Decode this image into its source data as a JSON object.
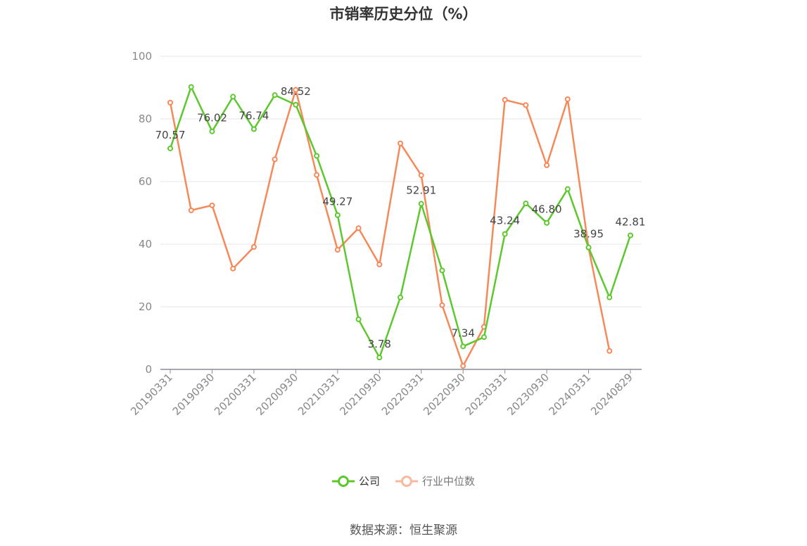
{
  "chart_data": {
    "type": "line",
    "title": "市销率历史分位（%）",
    "xlabel": "",
    "ylabel": "",
    "ylim": [
      0,
      100
    ],
    "yticks": [
      0,
      20,
      40,
      60,
      80,
      100
    ],
    "x_tick_labels": [
      "20190331",
      "20190930",
      "20200331",
      "20200930",
      "20210331",
      "20210930",
      "20220331",
      "20220930",
      "20230331",
      "20230930",
      "20240331",
      "20240829"
    ],
    "x_tick_positions": [
      0,
      2,
      4,
      6,
      8,
      10,
      12,
      14,
      16,
      18,
      20,
      22
    ],
    "grid": "horizontal",
    "legend_position": "bottom-center",
    "series": [
      {
        "name": "公司",
        "color": "#5dc82e",
        "values": [
          70.57,
          90.2,
          76.02,
          87.1,
          76.74,
          87.6,
          84.52,
          68.2,
          49.27,
          16.0,
          3.78,
          23.0,
          52.91,
          31.6,
          7.34,
          10.3,
          43.24,
          53.0,
          46.8,
          57.6,
          38.95,
          23.0,
          42.81
        ]
      },
      {
        "name": "行业中位数",
        "color": "#f5895a",
        "values": [
          85.2,
          50.8,
          52.4,
          32.2,
          39.1,
          67.1,
          89.3,
          62.1,
          38.2,
          45.1,
          33.5,
          72.2,
          62.0,
          20.5,
          1.1,
          13.6,
          86.1,
          84.4,
          65.2,
          86.3,
          38.9,
          5.9,
          null
        ]
      }
    ],
    "data_labels": [
      {
        "series": 0,
        "index": 0,
        "text": "70.57"
      },
      {
        "series": 0,
        "index": 2,
        "text": "76.02"
      },
      {
        "series": 0,
        "index": 4,
        "text": "76.74"
      },
      {
        "series": 0,
        "index": 6,
        "text": "84.52"
      },
      {
        "series": 0,
        "index": 8,
        "text": "49.27"
      },
      {
        "series": 0,
        "index": 10,
        "text": "3.78"
      },
      {
        "series": 0,
        "index": 12,
        "text": "52.91"
      },
      {
        "series": 0,
        "index": 14,
        "text": "7.34"
      },
      {
        "series": 0,
        "index": 16,
        "text": "43.24"
      },
      {
        "series": 0,
        "index": 18,
        "text": "46.80"
      },
      {
        "series": 0,
        "index": 20,
        "text": "38.95"
      },
      {
        "series": 0,
        "index": 22,
        "text": "42.81"
      }
    ]
  },
  "legend": {
    "items": [
      {
        "label": "公司",
        "color": "#5dc82e"
      },
      {
        "label": "行业中位数",
        "color": "#f8b9a0"
      }
    ]
  },
  "footer": {
    "source": "数据来源：恒生聚源"
  }
}
